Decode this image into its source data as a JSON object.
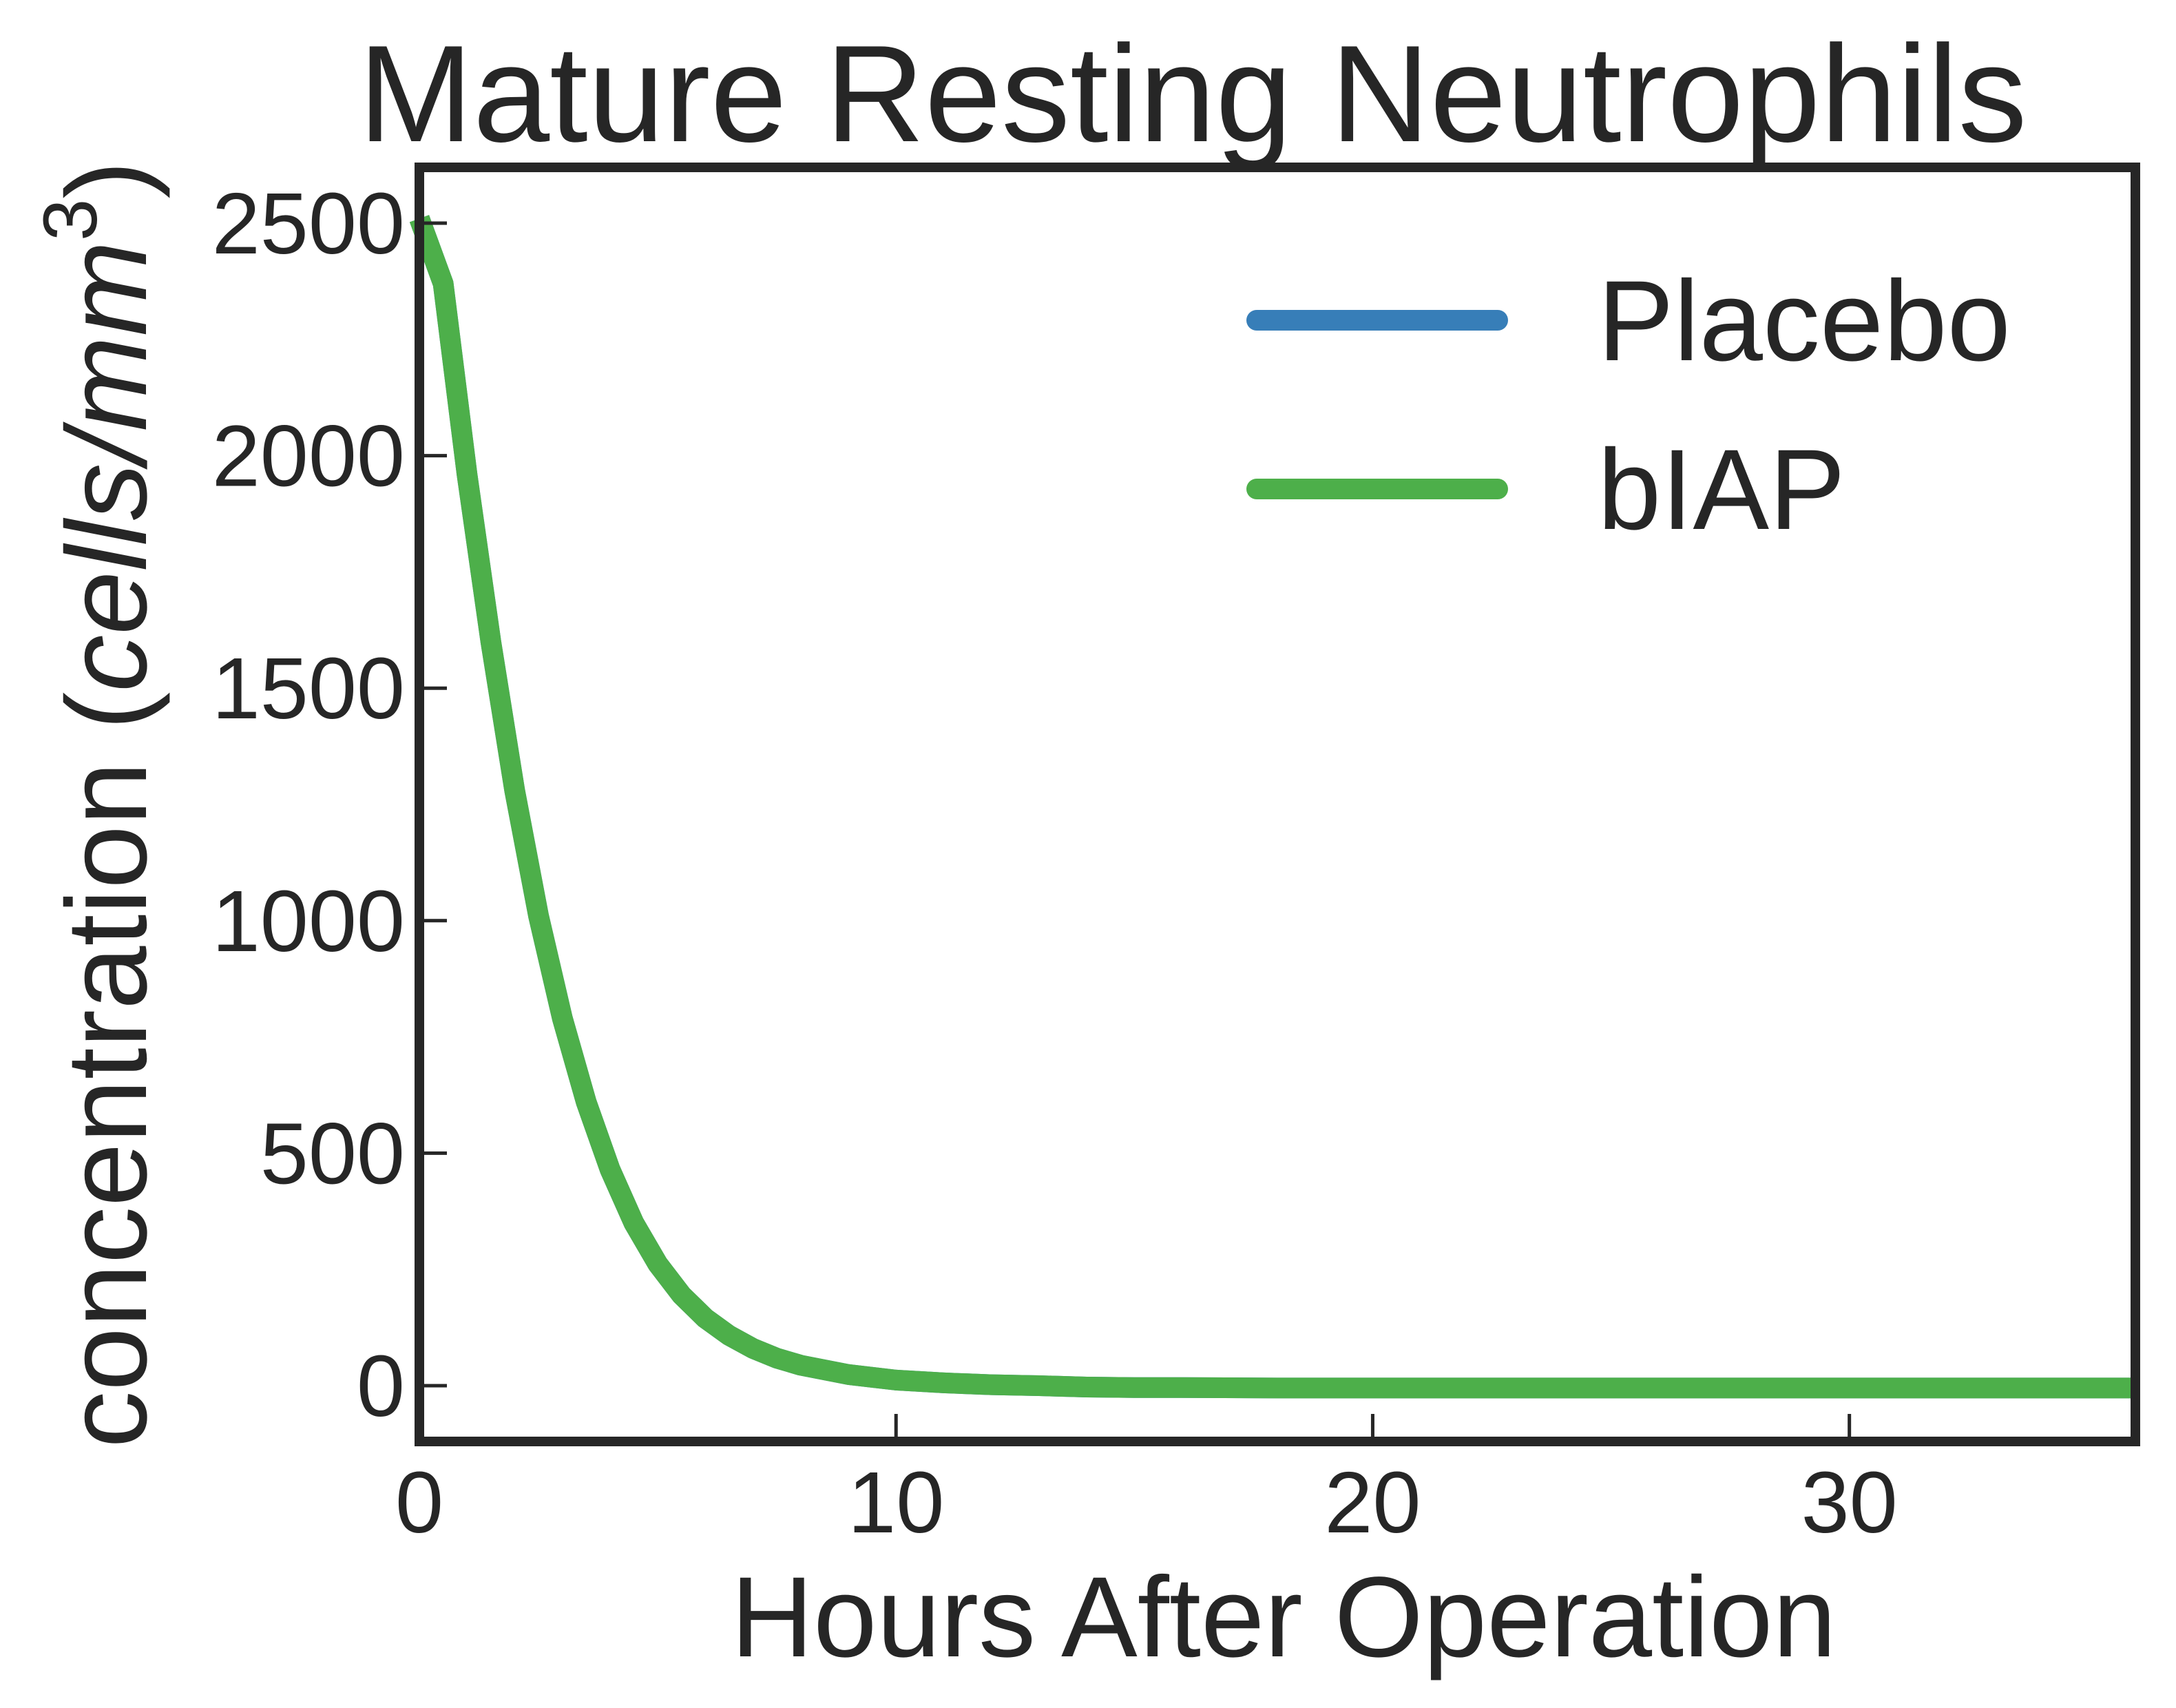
{
  "chart_data": {
    "type": "line",
    "title": "Mature Resting Neutrophils",
    "xlabel": "Hours After Operation",
    "ylabel_prefix": "concentration (",
    "ylabel_units": "cells/mm",
    "ylabel_superscript": "3",
    "ylabel_suffix": ")",
    "xlim": [
      0,
      36
    ],
    "ylim": [
      -120,
      2620
    ],
    "xticks": [
      0,
      10,
      20,
      30
    ],
    "yticks": [
      0,
      500,
      1000,
      1500,
      2000,
      2500
    ],
    "grid": false,
    "legend_position": "top-right",
    "series": [
      {
        "name": "Placebo",
        "color": "#377eb8",
        "x": [
          0,
          0.5,
          1,
          1.5,
          2,
          2.5,
          3,
          3.5,
          4,
          4.5,
          5,
          5.5,
          6,
          6.5,
          7,
          7.5,
          8,
          9,
          10,
          11,
          12,
          13,
          14,
          15,
          16,
          18,
          20,
          24,
          28,
          32,
          36
        ],
        "y": [
          2510,
          2370,
          1960,
          1600,
          1280,
          1010,
          790,
          610,
          465,
          350,
          262,
          195,
          145,
          108,
          80,
          59,
          44,
          24,
          12,
          6,
          2,
          0,
          -3,
          -4,
          -4,
          -5,
          -5,
          -5,
          -5,
          -5,
          -5
        ]
      },
      {
        "name": "bIAP",
        "color": "#4daf4a",
        "x": [
          0,
          0.5,
          1,
          1.5,
          2,
          2.5,
          3,
          3.5,
          4,
          4.5,
          5,
          5.5,
          6,
          6.5,
          7,
          7.5,
          8,
          9,
          10,
          11,
          12,
          13,
          14,
          15,
          16,
          18,
          20,
          24,
          28,
          32,
          36
        ],
        "y": [
          2510,
          2370,
          1960,
          1600,
          1280,
          1010,
          790,
          610,
          465,
          350,
          262,
          195,
          145,
          108,
          80,
          59,
          44,
          24,
          12,
          6,
          2,
          0,
          -3,
          -4,
          -4,
          -5,
          -5,
          -5,
          -5,
          -5,
          -5
        ]
      }
    ]
  }
}
